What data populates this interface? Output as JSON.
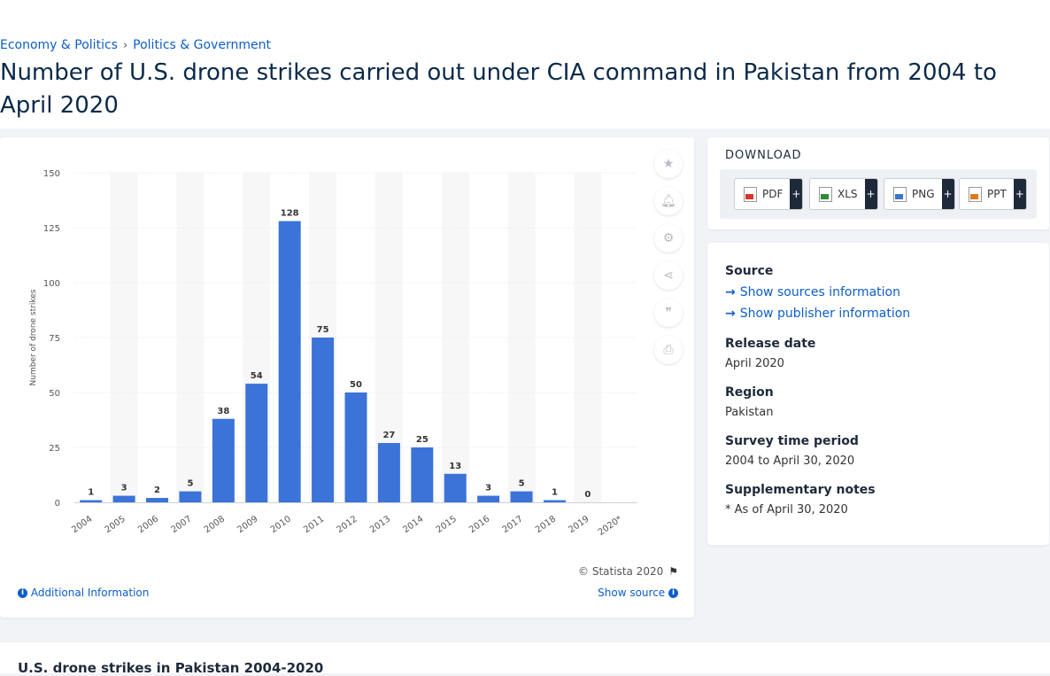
{
  "breadcrumb": {
    "items": [
      "Economy & Politics",
      "Politics & Government"
    ],
    "separator": "›"
  },
  "page_title": "Number of U.S. drone strikes carried out under CIA command in Pakistan from 2004 to April 2020",
  "chart_footer": {
    "copyright": "© Statista 2020",
    "additional_info": "Additional Information",
    "show_source": "Show source"
  },
  "side_tools": [
    "star-icon",
    "bell-icon",
    "gear-icon",
    "share-icon",
    "quote-icon",
    "print-icon"
  ],
  "download": {
    "title": "DOWNLOAD",
    "buttons": [
      {
        "label": "PDF",
        "color": "#d9342b"
      },
      {
        "label": "XLS",
        "color": "#2e8b3a"
      },
      {
        "label": "PNG",
        "color": "#3a78c9"
      },
      {
        "label": "PPT",
        "color": "#e07b1c"
      }
    ],
    "plus": "+"
  },
  "meta": {
    "source_heading": "Source",
    "show_sources": "Show sources information",
    "show_publisher": "Show publisher information",
    "release_heading": "Release date",
    "release_value": "April 2020",
    "region_heading": "Region",
    "region_value": "Pakistan",
    "survey_heading": "Survey time period",
    "survey_value": "2004 to April 30, 2020",
    "notes_heading": "Supplementary notes",
    "notes_value": "* As of April 30, 2020"
  },
  "bottom": {
    "title": "U.S. drone strikes in Pakistan 2004-2020"
  },
  "colors": {
    "bar": "#3b73d9",
    "link": "#0e5ec8",
    "title": "#0b2a4a"
  },
  "chart_data": {
    "type": "bar",
    "title": "",
    "xlabel": "",
    "ylabel": "Number of drone strikes",
    "categories": [
      "2004",
      "2005",
      "2006",
      "2007",
      "2008",
      "2009",
      "2010",
      "2011",
      "2012",
      "2013",
      "2014",
      "2015",
      "2016",
      "2017",
      "2018",
      "2019",
      "2020*"
    ],
    "values": [
      1,
      3,
      2,
      5,
      38,
      54,
      128,
      75,
      50,
      27,
      25,
      13,
      3,
      5,
      1,
      0,
      null
    ],
    "data_labels": [
      "1",
      "3",
      "2",
      "5",
      "38",
      "54",
      "128",
      "75",
      "50",
      "27",
      "25",
      "13",
      "3",
      "5",
      "1",
      "0",
      ""
    ],
    "ylim": [
      0,
      150
    ],
    "yticks": [
      0,
      25,
      50,
      75,
      100,
      125,
      150
    ],
    "grid": true
  }
}
